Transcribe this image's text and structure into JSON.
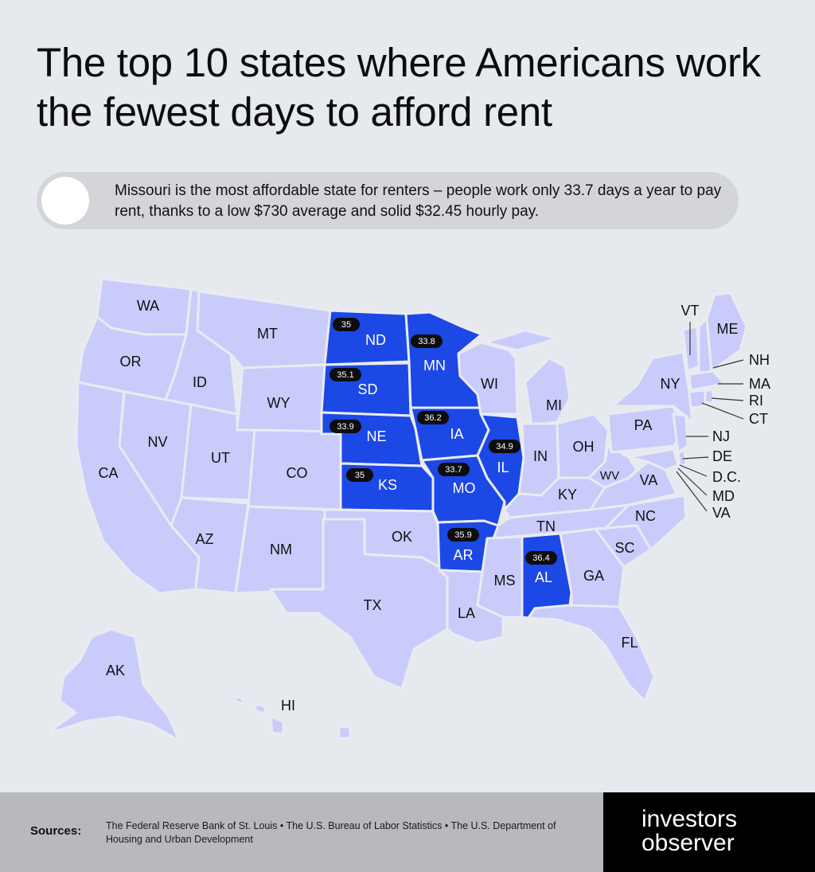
{
  "title": "The top 10 states where Americans work the fewest days to afford rent",
  "callout": {
    "text": "Missouri is the most affordable state for renters – people work only 33.7 days a year to pay rent, thanks to a low $730 average and solid $32.45 hourly pay."
  },
  "colors": {
    "highlight": "#1c48e6",
    "other_states": "#c9cbfb",
    "background": "#e6e9ee"
  },
  "map": {
    "highlighted": [
      {
        "state": "ND",
        "days": "35"
      },
      {
        "state": "MN",
        "days": "33.8"
      },
      {
        "state": "SD",
        "days": "35.1"
      },
      {
        "state": "NE",
        "days": "33.9"
      },
      {
        "state": "IA",
        "days": "36.2"
      },
      {
        "state": "IL",
        "days": "34.9"
      },
      {
        "state": "KS",
        "days": "35"
      },
      {
        "state": "MO",
        "days": "33.7"
      },
      {
        "state": "AR",
        "days": "35.9"
      },
      {
        "state": "AL",
        "days": "36.4"
      }
    ],
    "labels": {
      "WA": "WA",
      "OR": "OR",
      "CA": "CA",
      "ID": "ID",
      "NV": "NV",
      "MT": "MT",
      "WY": "WY",
      "UT": "UT",
      "AZ": "AZ",
      "CO": "CO",
      "NM": "NM",
      "ND": "ND",
      "SD": "SD",
      "NE": "NE",
      "KS": "KS",
      "OK": "OK",
      "TX": "TX",
      "MN": "MN",
      "IA": "IA",
      "MO": "MO",
      "AR": "AR",
      "LA": "LA",
      "WI": "WI",
      "IL": "IL",
      "MI": "MI",
      "IN": "IN",
      "OH": "OH",
      "KY": "KY",
      "TN": "TN",
      "MS": "MS",
      "AL": "AL",
      "GA": "GA",
      "FL": "FL",
      "SC": "SC",
      "NC": "NC",
      "VA": "VA",
      "WV": "WV",
      "PA": "PA",
      "NY": "NY",
      "VT": "VT",
      "ME": "ME",
      "NH": "NH",
      "MA": "MA",
      "RI": "RI",
      "CT": "CT",
      "NJ": "NJ",
      "DE": "DE",
      "DC": "D.C.",
      "MD": "MD",
      "VA2": "VA",
      "AK": "AK",
      "HI": "HI"
    }
  },
  "footer": {
    "sources_label": "Sources:",
    "sources": "The Federal Reserve Bank of St. Louis  •  The U.S. Bureau of Labor Statistics  •  The U.S. Department of Housing and Urban Development"
  },
  "brand": {
    "line1": "investors",
    "line2": "observer"
  }
}
